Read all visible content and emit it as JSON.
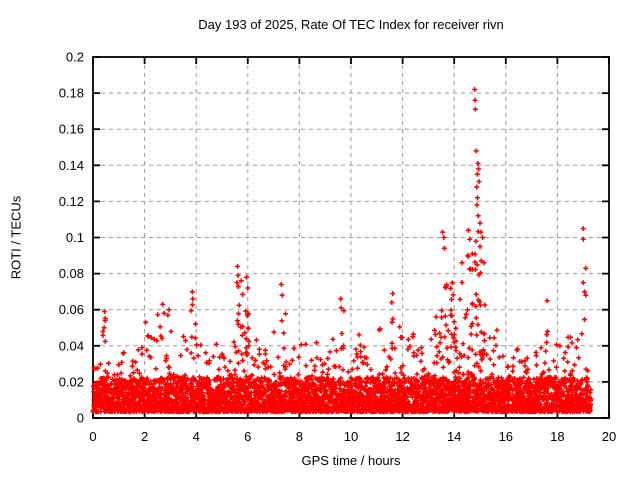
{
  "meta": {
    "day_of_year": "193",
    "year": "2025",
    "receiver": "rivn"
  },
  "chart_data": {
    "type": "scatter",
    "title": "Day 193 of 2025, Rate Of TEC Index for receiver rivn",
    "xlabel": "GPS time / hours",
    "ylabel": "ROTI / TECUs",
    "xlim": [
      0,
      20
    ],
    "ylim": [
      0,
      0.2
    ],
    "xticks": [
      0,
      2,
      4,
      6,
      8,
      10,
      12,
      14,
      16,
      18,
      20
    ],
    "xtick_labels": [
      "0",
      "2",
      "4",
      "6",
      "8",
      "10",
      "12",
      "14",
      "16",
      "18",
      "20"
    ],
    "yticks": [
      0,
      0.02,
      0.04,
      0.06,
      0.08,
      0.1,
      0.12,
      0.14,
      0.16,
      0.18,
      0.2
    ],
    "ytick_labels": [
      "0",
      "0.02",
      "0.04",
      "0.06",
      "0.08",
      "0.1",
      "0.12",
      "0.14",
      "0.16",
      "0.18",
      "0.2"
    ],
    "grid": true,
    "legend": "none",
    "marker": "plus",
    "colors": {
      "marker": "#ff0000",
      "grid": "#999999",
      "axis": "#000000",
      "background": "#ffffff",
      "text": "#000000"
    },
    "data_span_hours": [
      0,
      19.3
    ],
    "baseline_y": 0.0035,
    "dense_band_top_typical": 0.022,
    "envelope_bins": [
      [
        0.125,
        0.028
      ],
      [
        0.375,
        0.059
      ],
      [
        0.625,
        0.034
      ],
      [
        0.875,
        0.032
      ],
      [
        1.125,
        0.04
      ],
      [
        1.375,
        0.03
      ],
      [
        1.625,
        0.032
      ],
      [
        1.875,
        0.045
      ],
      [
        2.125,
        0.055
      ],
      [
        2.375,
        0.05
      ],
      [
        2.625,
        0.058
      ],
      [
        2.875,
        0.062
      ],
      [
        3.125,
        0.05
      ],
      [
        3.375,
        0.042
      ],
      [
        3.625,
        0.046
      ],
      [
        3.875,
        0.068
      ],
      [
        4.125,
        0.045
      ],
      [
        4.375,
        0.04
      ],
      [
        4.625,
        0.042
      ],
      [
        4.875,
        0.05
      ],
      [
        5.125,
        0.056
      ],
      [
        5.375,
        0.048
      ],
      [
        5.625,
        0.082
      ],
      [
        5.875,
        0.07
      ],
      [
        6.125,
        0.062
      ],
      [
        6.375,
        0.048
      ],
      [
        6.625,
        0.04
      ],
      [
        6.875,
        0.042
      ],
      [
        7.125,
        0.052
      ],
      [
        7.375,
        0.07
      ],
      [
        7.625,
        0.045
      ],
      [
        7.875,
        0.04
      ],
      [
        8.125,
        0.042
      ],
      [
        8.375,
        0.038
      ],
      [
        8.625,
        0.044
      ],
      [
        8.875,
        0.048
      ],
      [
        9.125,
        0.042
      ],
      [
        9.375,
        0.05
      ],
      [
        9.625,
        0.064
      ],
      [
        9.875,
        0.045
      ],
      [
        10.125,
        0.04
      ],
      [
        10.375,
        0.05
      ],
      [
        10.625,
        0.045
      ],
      [
        10.875,
        0.04
      ],
      [
        11.125,
        0.062
      ],
      [
        11.375,
        0.058
      ],
      [
        11.625,
        0.066
      ],
      [
        11.875,
        0.055
      ],
      [
        12.125,
        0.045
      ],
      [
        12.375,
        0.05
      ],
      [
        12.625,
        0.042
      ],
      [
        12.875,
        0.04
      ],
      [
        13.125,
        0.052
      ],
      [
        13.375,
        0.058
      ],
      [
        13.625,
        0.085
      ],
      [
        13.875,
        0.075
      ],
      [
        14.125,
        0.07
      ],
      [
        14.375,
        0.08
      ],
      [
        14.625,
        0.095
      ],
      [
        14.875,
        0.105
      ],
      [
        15.125,
        0.088
      ],
      [
        15.375,
        0.058
      ],
      [
        15.625,
        0.05
      ],
      [
        15.875,
        0.038
      ],
      [
        16.125,
        0.036
      ],
      [
        16.375,
        0.04
      ],
      [
        16.625,
        0.042
      ],
      [
        16.875,
        0.04
      ],
      [
        17.125,
        0.038
      ],
      [
        17.375,
        0.04
      ],
      [
        17.625,
        0.048
      ],
      [
        17.875,
        0.042
      ],
      [
        18.125,
        0.045
      ],
      [
        18.375,
        0.05
      ],
      [
        18.625,
        0.048
      ],
      [
        18.875,
        0.05
      ],
      [
        19.15,
        0.055,
        0.15
      ]
    ],
    "outliers": [
      [
        0.45,
        0.059
      ],
      [
        0.47,
        0.054
      ],
      [
        0.43,
        0.05
      ],
      [
        2.7,
        0.063
      ],
      [
        2.75,
        0.058
      ],
      [
        2.95,
        0.06
      ],
      [
        3.85,
        0.07
      ],
      [
        3.87,
        0.066
      ],
      [
        5.6,
        0.084
      ],
      [
        5.62,
        0.079
      ],
      [
        5.58,
        0.075
      ],
      [
        5.95,
        0.078
      ],
      [
        6.0,
        0.072
      ],
      [
        7.3,
        0.074
      ],
      [
        7.33,
        0.068
      ],
      [
        9.6,
        0.066
      ],
      [
        9.62,
        0.061
      ],
      [
        11.62,
        0.069
      ],
      [
        11.58,
        0.064
      ],
      [
        12.4,
        0.045
      ],
      [
        13.3,
        0.056
      ],
      [
        13.55,
        0.103
      ],
      [
        13.6,
        0.1
      ],
      [
        13.62,
        0.094
      ],
      [
        14.3,
        0.086
      ],
      [
        14.55,
        0.104
      ],
      [
        14.6,
        0.099
      ],
      [
        14.79,
        0.182
      ],
      [
        14.81,
        0.176
      ],
      [
        14.82,
        0.171
      ],
      [
        14.85,
        0.148
      ],
      [
        14.92,
        0.141
      ],
      [
        14.94,
        0.138
      ],
      [
        14.9,
        0.135
      ],
      [
        14.96,
        0.131
      ],
      [
        14.87,
        0.128
      ],
      [
        14.9,
        0.122
      ],
      [
        14.88,
        0.118
      ],
      [
        14.93,
        0.112
      ],
      [
        15.0,
        0.108
      ],
      [
        15.04,
        0.103
      ],
      [
        15.1,
        0.1
      ],
      [
        15.0,
        0.095
      ],
      [
        14.7,
        0.091
      ],
      [
        15.15,
        0.086
      ],
      [
        17.6,
        0.065
      ],
      [
        17.62,
        0.048
      ],
      [
        19.0,
        0.105
      ],
      [
        19.0,
        0.099
      ],
      [
        19.1,
        0.083
      ],
      [
        19.0,
        0.075
      ],
      [
        19.05,
        0.07
      ],
      [
        19.1,
        0.068
      ]
    ]
  }
}
